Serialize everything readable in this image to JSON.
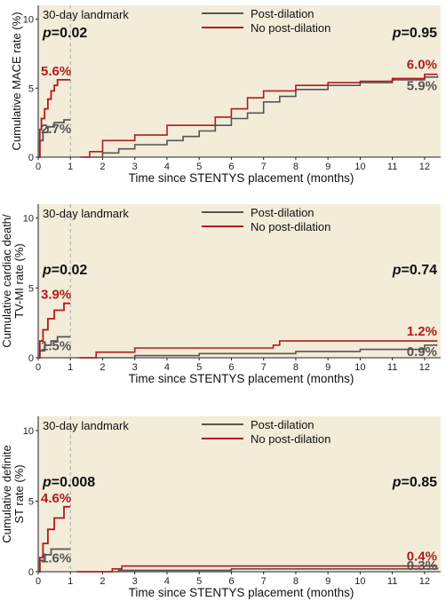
{
  "figure": {
    "x_axis_label": "Time since STENTYS placement (months)",
    "landmark_label": "30-day landmark",
    "x_ticks": [
      "0",
      "1",
      "2",
      "3",
      "4",
      "5",
      "6",
      "7",
      "8",
      "9",
      "10",
      "11",
      "12"
    ],
    "colors": {
      "post_dilation": "#555555",
      "no_post_dilation": "#b3191e",
      "panel_bg": "#f2ecd9",
      "landmark_line": "#aaaaaa"
    }
  },
  "chart_data": [
    {
      "type": "line",
      "step": true,
      "ylabel": "Cumulative MACE rate (%)",
      "ylim": [
        0,
        11
      ],
      "yticks": [
        "0",
        "5",
        "10"
      ],
      "xlim": [
        0,
        12.5
      ],
      "legend_position": "top-center",
      "series": [
        {
          "name": "Post-dilation",
          "segment_before_landmark": [
            [
              0,
              0
            ],
            [
              0.05,
              1.2
            ],
            [
              0.15,
              1.8
            ],
            [
              0.3,
              2.2
            ],
            [
              0.5,
              2.5
            ],
            [
              0.8,
              2.7
            ],
            [
              1,
              2.7
            ]
          ],
          "segment_after_landmark": [
            [
              1.4,
              0
            ],
            [
              2,
              0.3
            ],
            [
              2.5,
              0.6
            ],
            [
              3,
              0.9
            ],
            [
              4,
              1.2
            ],
            [
              4.5,
              1.5
            ],
            [
              5,
              1.9
            ],
            [
              5.5,
              2.3
            ],
            [
              6,
              2.8
            ],
            [
              6.5,
              3.2
            ],
            [
              7,
              4.0
            ],
            [
              7.5,
              4.4
            ],
            [
              8,
              4.9
            ],
            [
              9,
              5.2
            ],
            [
              10,
              5.4
            ],
            [
              11,
              5.6
            ],
            [
              12,
              5.8
            ],
            [
              12.4,
              5.9
            ]
          ],
          "landmark_value_label": "2.7%",
          "final_value_label": "5.9%"
        },
        {
          "name": "No post-dilation",
          "segment_before_landmark": [
            [
              0,
              0
            ],
            [
              0.05,
              2.0
            ],
            [
              0.1,
              2.8
            ],
            [
              0.2,
              3.5
            ],
            [
              0.3,
              4.2
            ],
            [
              0.4,
              4.8
            ],
            [
              0.5,
              5.2
            ],
            [
              0.6,
              5.6
            ],
            [
              1,
              5.6
            ]
          ],
          "segment_after_landmark": [
            [
              1.3,
              0
            ],
            [
              1.6,
              0.4
            ],
            [
              2,
              1.2
            ],
            [
              3,
              1.6
            ],
            [
              4,
              2.3
            ],
            [
              5,
              2.3
            ],
            [
              5.5,
              2.9
            ],
            [
              6,
              3.5
            ],
            [
              6.5,
              4.3
            ],
            [
              7,
              4.8
            ],
            [
              8,
              5.2
            ],
            [
              9,
              5.4
            ],
            [
              10,
              5.5
            ],
            [
              11,
              5.7
            ],
            [
              12,
              6.0
            ],
            [
              12.4,
              6.0
            ]
          ],
          "landmark_value_label": "5.6%",
          "final_value_label": "6.0%"
        }
      ],
      "p_value_landmark": {
        "p": "p",
        "value": "=0.02"
      },
      "p_value_after": {
        "p": "p",
        "value": "=0.95"
      }
    },
    {
      "type": "line",
      "step": true,
      "ylabel_line1": "Cumulative  cardiac death/",
      "ylabel_line2": "TV-MI rate (%)",
      "ylim": [
        0,
        11
      ],
      "yticks": [
        "0",
        "5",
        "10"
      ],
      "xlim": [
        0,
        12.5
      ],
      "legend_position": "top-center",
      "series": [
        {
          "name": "Post-dilation",
          "segment_before_landmark": [
            [
              0,
              0
            ],
            [
              0.05,
              0.5
            ],
            [
              0.2,
              0.9
            ],
            [
              0.4,
              1.2
            ],
            [
              0.6,
              1.5
            ],
            [
              1,
              1.5
            ]
          ],
          "segment_after_landmark": [
            [
              1.2,
              0
            ],
            [
              3,
              0.15
            ],
            [
              5,
              0.3
            ],
            [
              8,
              0.45
            ],
            [
              10,
              0.6
            ],
            [
              12,
              0.9
            ],
            [
              12.4,
              0.9
            ]
          ],
          "landmark_value_label": "1.5%",
          "final_value_label": "0.9%"
        },
        {
          "name": "No post-dilation",
          "segment_before_landmark": [
            [
              0,
              0
            ],
            [
              0.05,
              1.2
            ],
            [
              0.15,
              2.0
            ],
            [
              0.3,
              2.8
            ],
            [
              0.5,
              3.4
            ],
            [
              0.8,
              3.9
            ],
            [
              1,
              3.9
            ]
          ],
          "segment_after_landmark": [
            [
              1.3,
              0
            ],
            [
              1.8,
              0.4
            ],
            [
              3,
              0.7
            ],
            [
              7.3,
              0.9
            ],
            [
              7.5,
              1.2
            ],
            [
              12.4,
              1.2
            ]
          ],
          "landmark_value_label": "3.9%",
          "final_value_label": "1.2%"
        }
      ],
      "p_value_landmark": {
        "p": "p",
        "value": "=0.02"
      },
      "p_value_after": {
        "p": "p",
        "value": "=0.74"
      }
    },
    {
      "type": "line",
      "step": true,
      "ylabel_line1": "Cumulative definite",
      "ylabel_line2": "ST rate (%)",
      "ylim": [
        0,
        11
      ],
      "yticks": [
        "0",
        "5",
        "10"
      ],
      "xlim": [
        0,
        12.5
      ],
      "legend_position": "top-center",
      "series": [
        {
          "name": "Post-dilation",
          "segment_before_landmark": [
            [
              0,
              0
            ],
            [
              0.05,
              0.8
            ],
            [
              0.2,
              1.2
            ],
            [
              0.4,
              1.6
            ],
            [
              1,
              1.6
            ]
          ],
          "segment_after_landmark": [
            [
              1.2,
              0
            ],
            [
              2.5,
              0.1
            ],
            [
              6,
              0.2
            ],
            [
              12.4,
              0.3
            ]
          ],
          "landmark_value_label": "1.6%",
          "final_value_label": "0.3%"
        },
        {
          "name": "No post-dilation",
          "segment_before_landmark": [
            [
              0,
              0
            ],
            [
              0.05,
              1.0
            ],
            [
              0.15,
              2.0
            ],
            [
              0.3,
              3.0
            ],
            [
              0.5,
              3.8
            ],
            [
              0.8,
              4.6
            ],
            [
              1,
              4.6
            ]
          ],
          "segment_after_landmark": [
            [
              1.2,
              0
            ],
            [
              2.3,
              0.2
            ],
            [
              2.6,
              0.4
            ],
            [
              12.4,
              0.4
            ]
          ],
          "landmark_value_label": "4.6%",
          "final_value_label": "0.4%"
        }
      ],
      "p_value_landmark": {
        "p": "p",
        "value": "=0.008"
      },
      "p_value_after": {
        "p": "p",
        "value": "=0.85"
      }
    }
  ]
}
